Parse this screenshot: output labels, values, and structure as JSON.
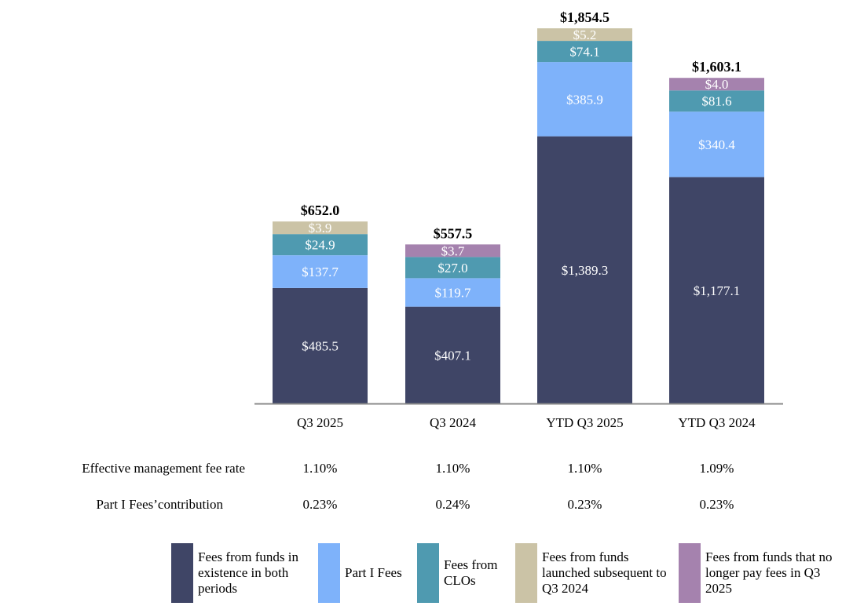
{
  "chart_data": {
    "type": "bar",
    "stacked": true,
    "categories": [
      "Q3 2025",
      "Q3 2024",
      "YTD Q3 2025",
      "YTD Q3 2024"
    ],
    "totals": [
      "$652.0",
      "$557.5",
      "$1,854.5",
      "$1,603.1"
    ],
    "series": [
      {
        "name": "Fees from funds in existence in both periods",
        "color": "#3f4566",
        "values": [
          485.5,
          407.1,
          1389.3,
          1177.1
        ],
        "labels": [
          "$485.5",
          "$407.1",
          "$1,389.3",
          "$1,177.1"
        ]
      },
      {
        "name": "Part I Fees",
        "color": "#7eb2fa",
        "values": [
          137.7,
          119.7,
          385.9,
          340.4
        ],
        "labels": [
          "$137.7",
          "$119.7",
          "$385.9",
          "$340.4"
        ]
      },
      {
        "name": "Fees from CLOs",
        "color": "#4f9ab0",
        "values": [
          24.9,
          27.0,
          74.1,
          81.6
        ],
        "labels": [
          "$24.9",
          "$27.0",
          "$74.1",
          "$81.6"
        ]
      },
      {
        "name": "Fees from funds launched subsequent to Q3 2024",
        "color": "#cbc3a6",
        "values": [
          3.9,
          null,
          5.2,
          null
        ],
        "labels": [
          "$3.9",
          null,
          "$5.2",
          null
        ]
      },
      {
        "name": "Fees from funds that no longer pay fees in Q3 2025",
        "color": "#a582ae",
        "values": [
          null,
          3.7,
          null,
          4.0
        ],
        "labels": [
          null,
          "$3.7",
          null,
          "$4.0"
        ]
      }
    ],
    "legend": "bottom"
  },
  "table": {
    "rows": [
      {
        "label": "Effective management fee rate",
        "values": [
          "1.10%",
          "1.10%",
          "1.10%",
          "1.09%"
        ]
      },
      {
        "label": "Part I Fees’contribution",
        "values": [
          "0.23%",
          "0.24%",
          "0.23%",
          "0.23%"
        ]
      }
    ]
  }
}
